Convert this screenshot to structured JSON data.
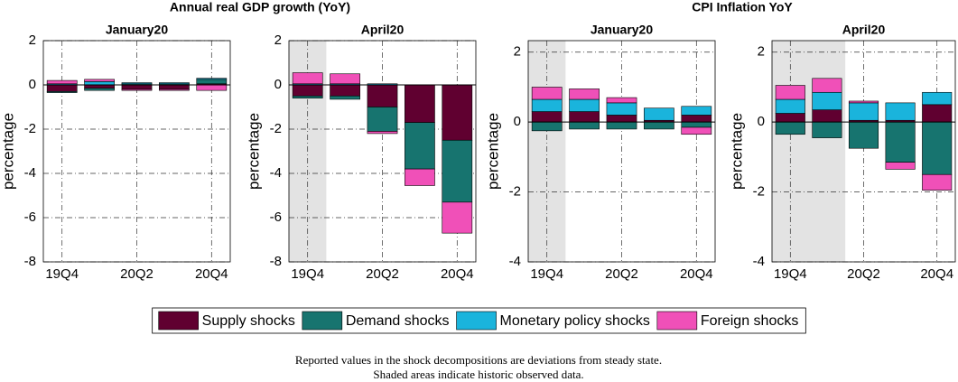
{
  "figure": {
    "titles": [
      "Annual real GDP growth (YoY)",
      "CPI Inflation YoY"
    ],
    "note": [
      "Reported values in the shock decompositions are deviations from steady state.",
      "Shaded areas indicate historic observed data."
    ]
  },
  "chart_data": [
    {
      "type": "bar",
      "stacked": true,
      "title": "January20",
      "ylabel": "percentage",
      "grid": true,
      "categories": [
        "19Q4",
        null,
        "20Q2",
        null,
        "20Q4"
      ],
      "ylim": [
        -8,
        2
      ],
      "yticks": [
        -8,
        -6,
        -4,
        -2,
        0,
        2
      ],
      "series": [
        {
          "name": "Supply shocks",
          "color": "#600030",
          "values": [
            -0.3,
            -0.15,
            -0.2,
            -0.2,
            0.05
          ]
        },
        {
          "name": "Demand shocks",
          "color": "#17746f",
          "values": [
            -0.05,
            -0.1,
            0.05,
            0.05,
            0.2
          ]
        },
        {
          "name": "Monetary policy shocks",
          "color": "#1ab4dc",
          "values": [
            0.05,
            0.15,
            0.05,
            0.05,
            0.05
          ]
        },
        {
          "name": "Foreign shocks",
          "color": "#f050b8",
          "values": [
            0.15,
            0.1,
            -0.05,
            -0.05,
            -0.25
          ]
        }
      ]
    },
    {
      "type": "bar",
      "stacked": true,
      "title": "April20",
      "ylabel": "percentage",
      "grid": true,
      "shaded_bars": 1,
      "categories": [
        "19Q4",
        null,
        "20Q2",
        null,
        "20Q4"
      ],
      "ylim": [
        -8,
        2
      ],
      "yticks": [
        -8,
        -6,
        -4,
        -2,
        0,
        2
      ],
      "series": [
        {
          "name": "Supply shocks",
          "color": "#600030",
          "values": [
            -0.5,
            -0.5,
            -1.0,
            -1.7,
            -2.5
          ]
        },
        {
          "name": "Demand shocks",
          "color": "#17746f",
          "values": [
            -0.1,
            -0.15,
            -1.1,
            -2.1,
            -2.8
          ]
        },
        {
          "name": "Monetary policy shocks",
          "color": "#1ab4dc",
          "values": [
            0.05,
            0.05,
            0.05,
            0,
            0
          ]
        },
        {
          "name": "Foreign shocks",
          "color": "#f050b8",
          "values": [
            0.5,
            0.45,
            -0.1,
            -0.75,
            -1.4
          ]
        }
      ]
    },
    {
      "type": "bar",
      "stacked": true,
      "title": "January20",
      "ylabel": "percentage",
      "grid": true,
      "shaded_bars": 1,
      "categories": [
        "19Q4",
        null,
        "20Q2",
        null,
        "20Q4"
      ],
      "ylim": [
        -4,
        2.33
      ],
      "yticks": [
        -4,
        -2,
        0,
        2
      ],
      "series": [
        {
          "name": "Supply shocks",
          "color": "#600030",
          "values": [
            0.3,
            0.3,
            0.2,
            0.05,
            0.2
          ]
        },
        {
          "name": "Demand shocks",
          "color": "#17746f",
          "values": [
            -0.25,
            -0.2,
            -0.2,
            -0.2,
            -0.15
          ]
        },
        {
          "name": "Monetary policy shocks",
          "color": "#1ab4dc",
          "values": [
            0.35,
            0.35,
            0.35,
            0.35,
            0.25
          ]
        },
        {
          "name": "Foreign shocks",
          "color": "#f050b8",
          "values": [
            0.35,
            0.3,
            0.15,
            0,
            -0.2
          ]
        }
      ]
    },
    {
      "type": "bar",
      "stacked": true,
      "title": "April20",
      "ylabel": "percentage",
      "grid": true,
      "shaded_bars": 2,
      "categories": [
        "19Q4",
        null,
        "20Q2",
        null,
        "20Q4"
      ],
      "ylim": [
        -4,
        2.33
      ],
      "yticks": [
        -4,
        -2,
        0,
        2
      ],
      "series": [
        {
          "name": "Supply shocks",
          "color": "#600030",
          "values": [
            0.25,
            0.35,
            0.05,
            0.05,
            0.5
          ]
        },
        {
          "name": "Demand shocks",
          "color": "#17746f",
          "values": [
            -0.35,
            -0.45,
            -0.75,
            -1.15,
            -1.5
          ]
        },
        {
          "name": "Monetary policy shocks",
          "color": "#1ab4dc",
          "values": [
            0.4,
            0.5,
            0.5,
            0.5,
            0.35
          ]
        },
        {
          "name": "Foreign shocks",
          "color": "#f050b8",
          "values": [
            0.4,
            0.4,
            0.05,
            -0.2,
            -0.45
          ]
        }
      ]
    }
  ]
}
